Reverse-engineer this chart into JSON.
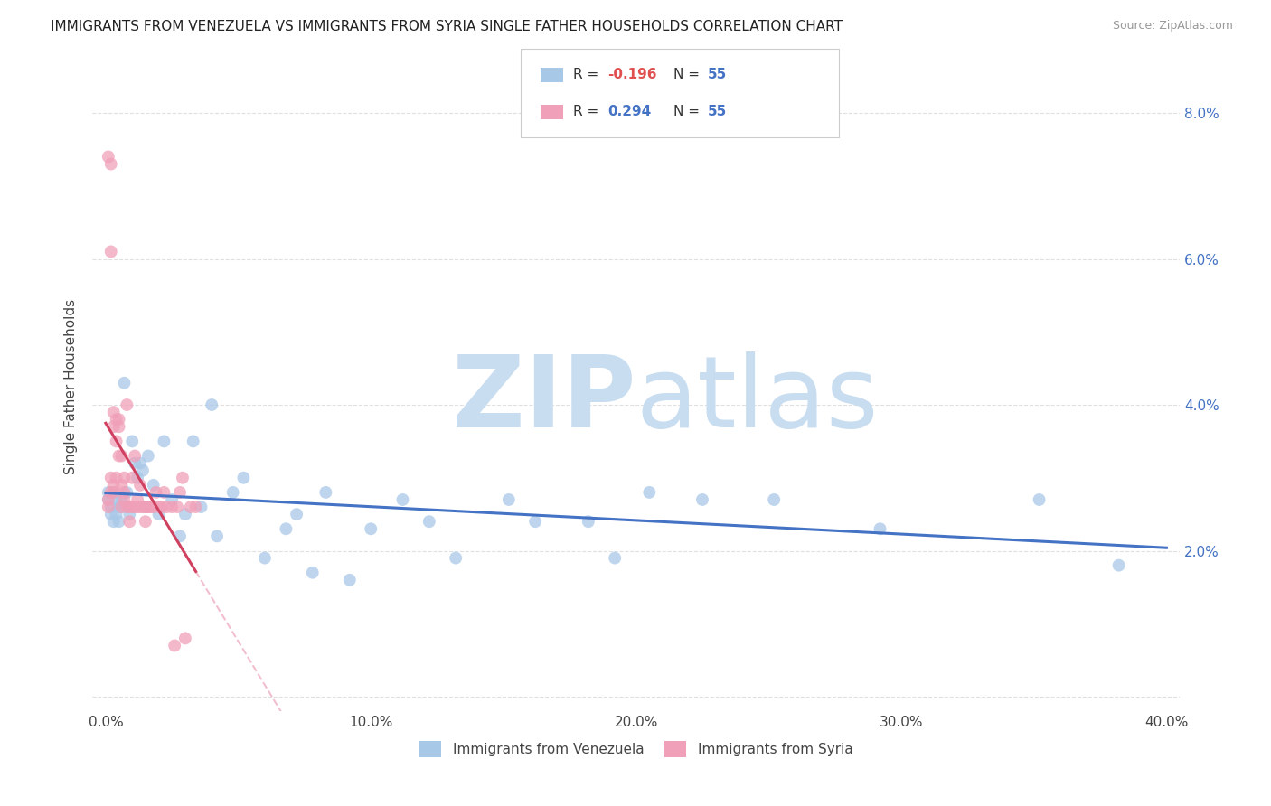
{
  "title": "IMMIGRANTS FROM VENEZUELA VS IMMIGRANTS FROM SYRIA SINGLE FATHER HOUSEHOLDS CORRELATION CHART",
  "source": "Source: ZipAtlas.com",
  "ylabel": "Single Father Households",
  "y_ticks": [
    0.0,
    0.02,
    0.04,
    0.06,
    0.08
  ],
  "y_tick_labels": [
    "",
    "2.0%",
    "4.0%",
    "6.0%",
    "8.0%"
  ],
  "x_ticks": [
    0.0,
    0.1,
    0.2,
    0.3,
    0.4
  ],
  "x_tick_labels": [
    "0.0%",
    "10.0%",
    "20.0%",
    "30.0%",
    "40.0%"
  ],
  "x_lim": [
    -0.005,
    0.405
  ],
  "y_lim": [
    -0.002,
    0.087
  ],
  "legend_label1": "Immigrants from Venezuela",
  "legend_label2": "Immigrants from Syria",
  "color_venezuela": "#a8c8e8",
  "color_syria": "#f0a0b8",
  "trendline_venezuela": "#4472c4",
  "trendline_syria": "#d04060",
  "dashed_line_venezuela_color": "#c0d8f0",
  "dashed_line_syria_color": "#f0b8c8",
  "watermark_zip_color": "#c8ddf0",
  "watermark_atlas_color": "#c8ddf0",
  "background_color": "#ffffff",
  "grid_color": "#e0e0e0",
  "title_fontsize": 11,
  "source_fontsize": 9,
  "tick_color": "#4472c4",
  "venezuela_x": [
    0.001,
    0.001,
    0.002,
    0.002,
    0.003,
    0.003,
    0.004,
    0.004,
    0.005,
    0.005,
    0.006,
    0.006,
    0.007,
    0.008,
    0.008,
    0.009,
    0.01,
    0.011,
    0.012,
    0.013,
    0.014,
    0.015,
    0.016,
    0.018,
    0.02,
    0.022,
    0.025,
    0.028,
    0.03,
    0.033,
    0.036,
    0.04,
    0.042,
    0.048,
    0.052,
    0.06,
    0.068,
    0.072,
    0.078,
    0.083,
    0.092,
    0.1,
    0.112,
    0.122,
    0.132,
    0.152,
    0.162,
    0.182,
    0.192,
    0.205,
    0.225,
    0.252,
    0.292,
    0.352,
    0.382
  ],
  "venezuela_y": [
    0.027,
    0.028,
    0.025,
    0.026,
    0.028,
    0.024,
    0.027,
    0.025,
    0.026,
    0.024,
    0.027,
    0.026,
    0.043,
    0.026,
    0.028,
    0.025,
    0.035,
    0.032,
    0.03,
    0.032,
    0.031,
    0.026,
    0.033,
    0.029,
    0.025,
    0.035,
    0.027,
    0.022,
    0.025,
    0.035,
    0.026,
    0.04,
    0.022,
    0.028,
    0.03,
    0.019,
    0.023,
    0.025,
    0.017,
    0.028,
    0.016,
    0.023,
    0.027,
    0.024,
    0.019,
    0.027,
    0.024,
    0.024,
    0.019,
    0.028,
    0.027,
    0.027,
    0.023,
    0.027,
    0.018
  ],
  "syria_x": [
    0.001,
    0.001,
    0.001,
    0.002,
    0.002,
    0.002,
    0.002,
    0.003,
    0.003,
    0.003,
    0.003,
    0.004,
    0.004,
    0.004,
    0.005,
    0.005,
    0.005,
    0.006,
    0.006,
    0.006,
    0.007,
    0.007,
    0.007,
    0.008,
    0.008,
    0.009,
    0.009,
    0.01,
    0.01,
    0.011,
    0.011,
    0.012,
    0.012,
    0.013,
    0.013,
    0.014,
    0.015,
    0.015,
    0.016,
    0.016,
    0.017,
    0.018,
    0.019,
    0.02,
    0.021,
    0.022,
    0.023,
    0.025,
    0.026,
    0.027,
    0.028,
    0.029,
    0.03,
    0.032,
    0.034
  ],
  "syria_y": [
    0.027,
    0.026,
    0.074,
    0.073,
    0.061,
    0.03,
    0.028,
    0.028,
    0.029,
    0.039,
    0.037,
    0.038,
    0.035,
    0.03,
    0.038,
    0.037,
    0.033,
    0.029,
    0.033,
    0.026,
    0.03,
    0.027,
    0.028,
    0.026,
    0.04,
    0.026,
    0.024,
    0.03,
    0.026,
    0.026,
    0.033,
    0.027,
    0.026,
    0.029,
    0.026,
    0.026,
    0.024,
    0.026,
    0.026,
    0.026,
    0.026,
    0.026,
    0.028,
    0.026,
    0.026,
    0.028,
    0.026,
    0.026,
    0.007,
    0.026,
    0.028,
    0.03,
    0.008,
    0.026,
    0.026
  ]
}
